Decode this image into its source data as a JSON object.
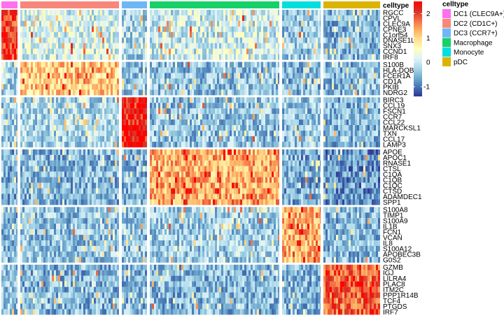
{
  "chart_data": {
    "type": "heatmap",
    "annotation_title": "celltype",
    "celltypes": [
      {
        "name": "DC1 (CLEC9A+)",
        "color": "#ff70ee"
      },
      {
        "name": "DC2 (CD1C+)",
        "color": "#f8877b"
      },
      {
        "name": "DC3 (CCR7+)",
        "color": "#6fb6f6"
      },
      {
        "name": "Macrophage",
        "color": "#16d068"
      },
      {
        "name": "Monocyte",
        "color": "#00dede"
      },
      {
        "name": "pDC",
        "color": "#dcb400"
      }
    ],
    "gene_groups": [
      [
        "RGCC",
        "CPVL",
        "CLEC9A",
        "CPNE3",
        "C1orf54",
        "DNASE1L3",
        "SNX3",
        "CCND1",
        "IRF8"
      ],
      [
        "S100B",
        "HLA-DQB2",
        "FCER1A",
        "CD1A",
        "PKIB",
        "NDRG2"
      ],
      [
        "BIRC3",
        "CCL19",
        "FSCN1",
        "CCR7",
        "CCL22",
        "MARCKSL1",
        "TXN",
        "CCL17",
        "LAMP3"
      ],
      [
        "APOE",
        "APOC1",
        "RNASE1",
        "CTSL",
        "C1QA",
        "C1QB",
        "C1QC",
        "CTSD",
        "ADAMDEC1",
        "SPP1"
      ],
      [
        "S100A8",
        "TIMP1",
        "S100A9",
        "IL1B",
        "FCN1",
        "VCAN",
        "IL8",
        "S100A12",
        "APOBEC3B",
        "G0S2"
      ],
      [
        "GZMB",
        "IGJ",
        "LILRA4",
        "PLAC8",
        "ITM2C",
        "PPP1R14B",
        "TCF4",
        "PTGDS",
        "IRF7"
      ]
    ],
    "approx_block_mean_z": [
      [
        2.0,
        0.1,
        -0.2,
        0.0,
        -0.3,
        -0.5
      ],
      [
        -0.2,
        1.1,
        -0.4,
        -0.4,
        -0.5,
        -0.5
      ],
      [
        -0.3,
        -0.2,
        2.2,
        -0.4,
        -0.4,
        -0.5
      ],
      [
        -0.6,
        -0.5,
        -0.5,
        1.3,
        -0.6,
        -0.8
      ],
      [
        -0.5,
        -0.4,
        -0.4,
        -0.3,
        1.3,
        -0.5
      ],
      [
        -0.4,
        -0.5,
        -0.5,
        -0.5,
        -0.5,
        1.8
      ]
    ],
    "colorbar": {
      "ticks": [
        "2",
        "1",
        "0",
        "-1"
      ],
      "tick_values": [
        2,
        1,
        0,
        -1
      ],
      "range": [
        -1.4,
        2.5
      ],
      "colors": [
        "#313695",
        "#4575b4",
        "#74add1",
        "#abd9e9",
        "#e0f3f8",
        "#ffffbf",
        "#fee090",
        "#fdae61",
        "#f46d43",
        "#d73027",
        "#ff0000"
      ]
    }
  }
}
